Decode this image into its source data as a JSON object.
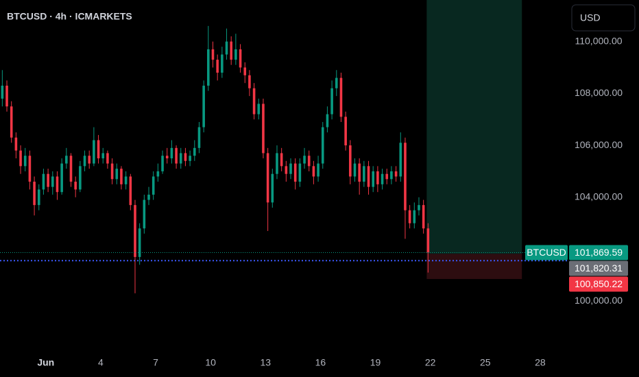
{
  "chart_data": {
    "type": "candlestick",
    "title": "BTCUSD · 4h · ICMARKETS",
    "currency_button": "USD",
    "up_color": "#089981",
    "down_color": "#f23645",
    "xlim": [
      -1.5,
      29.5
    ],
    "ylim": [
      98000,
      111600
    ],
    "xticks": [
      {
        "value": 1,
        "label": "Jun"
      },
      4,
      7,
      10,
      13,
      16,
      19,
      22,
      25,
      28
    ],
    "yticks": [
      {
        "value": 100000,
        "label": "100,000.00"
      },
      {
        "value": 104000,
        "label": "104,000.00"
      },
      {
        "value": 106000,
        "label": "106,000.00"
      },
      {
        "value": 108000,
        "label": "108,000.00"
      },
      {
        "value": 110000,
        "label": "110,000.00"
      }
    ],
    "x": [
      -1.375,
      -1.125,
      -0.875,
      -0.625,
      -0.375,
      -0.125,
      0.125,
      0.375,
      0.625,
      0.875,
      1.125,
      1.375,
      1.625,
      1.875,
      2.125,
      2.375,
      2.625,
      2.875,
      3.125,
      3.375,
      3.625,
      3.875,
      4.125,
      4.375,
      4.625,
      4.875,
      5.125,
      5.375,
      5.625,
      5.875,
      6.125,
      6.375,
      6.625,
      6.875,
      7.125,
      7.375,
      7.625,
      7.875,
      8.125,
      8.375,
      8.625,
      8.875,
      9.125,
      9.375,
      9.625,
      9.875,
      10.125,
      10.375,
      10.625,
      10.875,
      11.125,
      11.375,
      11.625,
      11.875,
      12.125,
      12.375,
      12.625,
      12.875,
      13.125,
      13.375,
      13.625,
      13.875,
      14.125,
      14.375,
      14.625,
      14.875,
      15.125,
      15.375,
      15.625,
      15.875,
      16.125,
      16.375,
      16.625,
      16.875,
      17.125,
      17.375,
      17.625,
      17.875,
      18.125,
      18.375,
      18.625,
      18.875,
      19.125,
      19.375,
      19.625,
      19.875,
      20.125,
      20.375,
      20.625,
      20.875,
      21.125,
      21.375,
      21.625,
      21.875
    ],
    "open": [
      107800,
      108300,
      107500,
      106300,
      105800,
      105200,
      105600,
      104600,
      103700,
      104300,
      104900,
      104400,
      104800,
      104200,
      105300,
      105600,
      104600,
      104300,
      105200,
      105600,
      105300,
      106200,
      105500,
      105700,
      105300,
      104700,
      105100,
      104500,
      104800,
      103700,
      101700,
      102800,
      103900,
      104100,
      104800,
      105000,
      105600,
      105500,
      105900,
      105300,
      105700,
      105400,
      105600,
      105900,
      106700,
      108300,
      109700,
      109300,
      108800,
      109500,
      110000,
      109300,
      109700,
      109000,
      108700,
      108200,
      107200,
      107600,
      105700,
      103800,
      104900,
      105700,
      105200,
      104900,
      105300,
      104600,
      105300,
      105600,
      105200,
      104800,
      105300,
      106700,
      107200,
      108200,
      108600,
      107100,
      106000,
      104800,
      105300,
      104600,
      105200,
      104400,
      105000,
      104500,
      104900,
      104700,
      105000,
      104800,
      106100,
      103500,
      103000,
      103500,
      103700,
      102800
    ],
    "high": [
      108900,
      108500,
      107700,
      106500,
      106000,
      105900,
      105800,
      104800,
      104500,
      105100,
      105100,
      105000,
      105000,
      105500,
      105900,
      105700,
      104800,
      105400,
      105800,
      105800,
      106700,
      106400,
      105900,
      105800,
      105500,
      105300,
      105200,
      105000,
      104900,
      103900,
      103000,
      104100,
      104400,
      105000,
      105300,
      105800,
      105900,
      106200,
      106000,
      105900,
      105900,
      105800,
      106200,
      106900,
      108500,
      110600,
      110000,
      109500,
      109800,
      110500,
      110200,
      110300,
      109900,
      109200,
      108900,
      108400,
      107800,
      107800,
      105900,
      105100,
      106000,
      105900,
      105400,
      105500,
      105500,
      105500,
      105900,
      105800,
      105400,
      105600,
      106900,
      107500,
      108500,
      108900,
      108800,
      107300,
      106200,
      105500,
      105500,
      105400,
      105400,
      105200,
      105200,
      105100,
      105100,
      105200,
      105200,
      106500,
      106300,
      103700,
      103800,
      104000,
      103900,
      103000
    ],
    "low": [
      107500,
      107300,
      106100,
      105500,
      104900,
      105000,
      104300,
      103300,
      103500,
      104100,
      104200,
      104100,
      103900,
      104100,
      105100,
      104400,
      104000,
      104200,
      105000,
      105100,
      105200,
      105300,
      105300,
      105100,
      104500,
      104500,
      104300,
      104300,
      103500,
      100300,
      101400,
      102600,
      103700,
      103900,
      104600,
      104900,
      105300,
      105300,
      105100,
      105100,
      105200,
      105200,
      105400,
      105700,
      106500,
      108100,
      109000,
      108500,
      108600,
      109300,
      109100,
      109100,
      108800,
      108400,
      107900,
      107000,
      107000,
      105500,
      102700,
      103600,
      104700,
      105000,
      104600,
      104700,
      104300,
      104400,
      105100,
      105000,
      104500,
      104600,
      105100,
      106500,
      107000,
      107900,
      106900,
      105800,
      104500,
      104600,
      104100,
      104400,
      104100,
      104200,
      104200,
      104300,
      104500,
      104500,
      104600,
      104600,
      102400,
      102800,
      102800,
      103300,
      102600,
      101100
    ],
    "close": [
      108300,
      107500,
      106300,
      105800,
      105200,
      105600,
      104600,
      103700,
      104300,
      104900,
      104400,
      104800,
      104200,
      105300,
      105600,
      104600,
      104300,
      105200,
      105600,
      105300,
      106200,
      105500,
      105700,
      105300,
      104700,
      105100,
      104500,
      104800,
      103700,
      101700,
      102800,
      103900,
      104100,
      104800,
      105000,
      105600,
      105500,
      105900,
      105300,
      105700,
      105400,
      105600,
      105900,
      106700,
      108300,
      109700,
      109300,
      108800,
      109500,
      110000,
      109300,
      109700,
      109000,
      108700,
      108200,
      107200,
      107600,
      105700,
      103800,
      104900,
      105700,
      105200,
      104900,
      105300,
      104600,
      105300,
      105600,
      105200,
      104800,
      105300,
      106700,
      107200,
      108200,
      108600,
      107100,
      106000,
      104800,
      105300,
      104600,
      105200,
      104400,
      105000,
      104500,
      104900,
      104700,
      105000,
      104800,
      106100,
      103500,
      103000,
      103500,
      103700,
      102800,
      101869.59
    ],
    "position": {
      "start": 21.8,
      "end": 27,
      "entry": 101820.31,
      "stop": 100850.22,
      "target": 111600,
      "profit_color": "#082820",
      "loss_color": "#2d0d10"
    },
    "price_line": 101869.59,
    "bid_line": 101560,
    "price_labels": [
      {
        "value": 101869.59,
        "label": "101,869.59",
        "tag": "BTCUSD",
        "color": "#089981"
      },
      {
        "value": 101820.31,
        "label": "101,820.31",
        "color": "#6b6e76"
      },
      {
        "value": 100850.22,
        "label": "100,850.22",
        "color": "#f23645"
      }
    ]
  }
}
